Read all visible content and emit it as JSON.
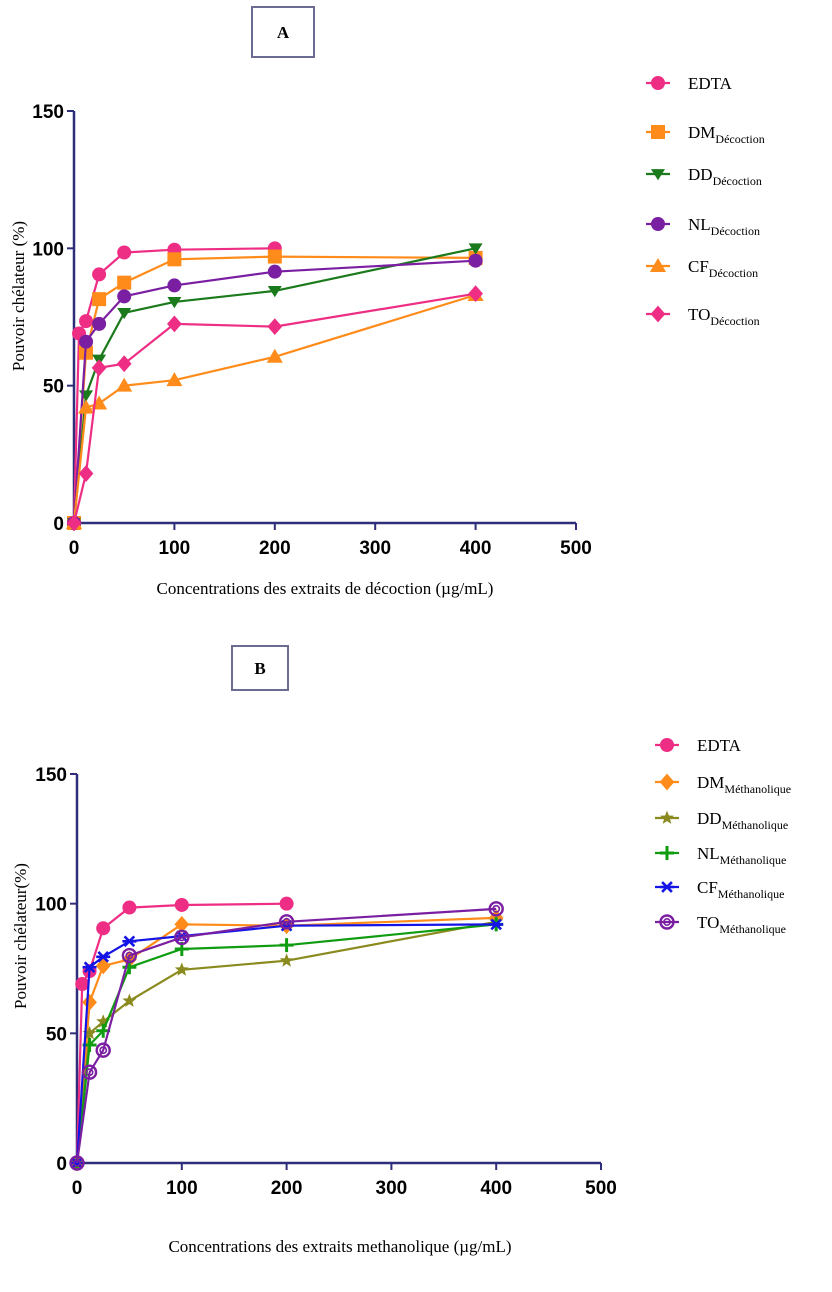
{
  "chart_data": [
    {
      "type": "line",
      "panel_label": "A",
      "xlabel": "Concentrations des extraits de décoction (µg/mL)",
      "ylabel": "Pouvoir chélateur (%)",
      "xlim": [
        0,
        500
      ],
      "ylim": [
        0,
        150
      ],
      "x_ticks": [
        "0",
        "100",
        "200",
        "300",
        "400",
        "500"
      ],
      "y_ticks": [
        "0",
        "50",
        "100",
        "150"
      ],
      "grid": false,
      "legend_position": "right",
      "series": [
        {
          "name": "EDTA",
          "sub": "",
          "color": "#ee2d84",
          "marker": "circle",
          "x": [
            0,
            5,
            12,
            25,
            50,
            100,
            200
          ],
          "y": [
            0,
            69,
            73.5,
            90.5,
            98.5,
            99.5,
            100
          ]
        },
        {
          "name": "DM",
          "sub": "Décoction",
          "color": "#ff8c1a",
          "marker": "square",
          "x": [
            0,
            12,
            25,
            50,
            100,
            200,
            400
          ],
          "y": [
            0,
            62,
            81.5,
            87.5,
            96,
            97,
            96.5
          ]
        },
        {
          "name": "DD",
          "sub": "Décoction",
          "color": "#1b7a1b",
          "marker": "triangle-down",
          "x": [
            0,
            12,
            25,
            50,
            100,
            200,
            400
          ],
          "y": [
            0,
            46.5,
            59.5,
            76.5,
            80.5,
            84.5,
            100
          ]
        },
        {
          "name": "NL",
          "sub": "Décoction",
          "color": "#7b1fa2",
          "marker": "circle",
          "x": [
            0,
            12,
            25,
            50,
            100,
            200,
            400
          ],
          "y": [
            0,
            66,
            72.5,
            82.5,
            86.5,
            91.5,
            95.5
          ]
        },
        {
          "name": "CF",
          "sub": "Décoction",
          "color": "#ff8c1a",
          "marker": "triangle-up",
          "x": [
            0,
            12,
            25,
            50,
            100,
            200,
            400
          ],
          "y": [
            0,
            42,
            43.5,
            50,
            52,
            60.5,
            83
          ]
        },
        {
          "name": "TO",
          "sub": "Décoction",
          "color": "#ee2d84",
          "marker": "diamond",
          "x": [
            0,
            12,
            25,
            50,
            100,
            200,
            400
          ],
          "y": [
            0,
            18,
            56.5,
            58,
            72.5,
            71.5,
            83.5
          ]
        }
      ]
    },
    {
      "type": "line",
      "panel_label": "B",
      "xlabel": "Concentrations des extraits methanolique (µg/mL)",
      "ylabel": "Pouvoir chélateur(%)",
      "xlim": [
        0,
        500
      ],
      "ylim": [
        0,
        150
      ],
      "x_ticks": [
        "0",
        "100",
        "200",
        "300",
        "400",
        "500"
      ],
      "y_ticks": [
        "0",
        "50",
        "100",
        "150"
      ],
      "grid": false,
      "legend_position": "right",
      "series": [
        {
          "name": "EDTA",
          "sub": "",
          "color": "#ee2d84",
          "marker": "circle",
          "x": [
            0,
            5,
            12,
            25,
            50,
            100,
            200
          ],
          "y": [
            0,
            69,
            74,
            90.5,
            98.5,
            99.5,
            100
          ]
        },
        {
          "name": "DM",
          "sub": "Méthanolique",
          "color": "#ff8c1a",
          "marker": "diamond",
          "x": [
            0,
            12,
            25,
            50,
            100,
            200,
            400
          ],
          "y": [
            0,
            62,
            76,
            78.5,
            92,
            91.5,
            94.5
          ]
        },
        {
          "name": "DD",
          "sub": "Méthanolique",
          "color": "#8a8a1e",
          "marker": "star",
          "x": [
            0,
            12,
            25,
            50,
            100,
            200,
            400
          ],
          "y": [
            0,
            50,
            54.5,
            62.5,
            74.5,
            78,
            93
          ]
        },
        {
          "name": "NL",
          "sub": "Méthanolique",
          "color": "#109c10",
          "marker": "plus",
          "x": [
            0,
            12,
            25,
            50,
            100,
            200,
            400
          ],
          "y": [
            0,
            45.5,
            51,
            75.5,
            82.5,
            84,
            92
          ]
        },
        {
          "name": "CF",
          "sub": "Méthanolique",
          "color": "#1414e6",
          "marker": "asterisk",
          "x": [
            0,
            12,
            25,
            50,
            100,
            200,
            400
          ],
          "y": [
            0,
            75.5,
            79.5,
            85.5,
            87.5,
            91.5,
            92
          ]
        },
        {
          "name": "TO",
          "sub": "Méthanolique",
          "color": "#7b1fa2",
          "marker": "circle-open",
          "x": [
            0,
            12,
            25,
            50,
            100,
            200,
            400
          ],
          "y": [
            0,
            35,
            43.5,
            80,
            87,
            93,
            98
          ]
        }
      ]
    }
  ]
}
